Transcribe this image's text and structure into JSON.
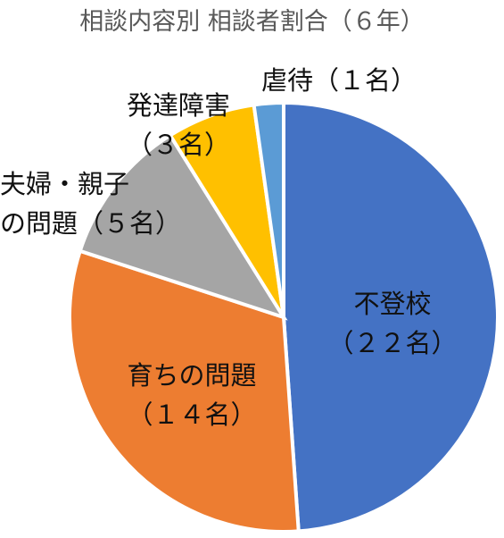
{
  "chart_data": {
    "type": "pie",
    "title": "相談内容別 相談者割合（６年）",
    "categories": [
      "不登校",
      "育ちの問題",
      "夫婦・親子の問題",
      "発達障害",
      "虐待"
    ],
    "values": [
      22,
      14,
      5,
      3,
      1
    ],
    "value_labels": [
      "（２２名）",
      "（１４名）",
      "（５名）",
      "（３名）",
      "（１名）"
    ],
    "colors": [
      "#4472c4",
      "#ed7d31",
      "#a5a5a5",
      "#ffc000",
      "#5b9bd5"
    ]
  }
}
